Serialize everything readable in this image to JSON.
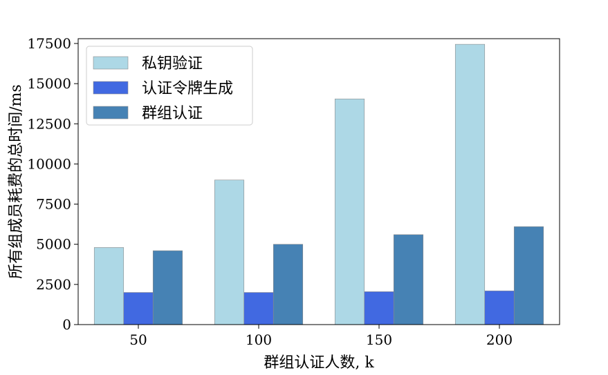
{
  "chart_data": {
    "type": "bar",
    "title": "",
    "xlabel": "群组认证人数, k",
    "ylabel": "所有组成员耗费的总时间/ms",
    "categories": [
      "50",
      "100",
      "150",
      "200"
    ],
    "series": [
      {
        "name": "私钥验证",
        "values": [
          4800,
          9000,
          14050,
          17450
        ],
        "color": "#add8e6"
      },
      {
        "name": "认证令牌生成",
        "values": [
          2000,
          2000,
          2050,
          2100
        ],
        "color": "#4169e1"
      },
      {
        "name": "群组认证",
        "values": [
          4600,
          5000,
          5600,
          6100
        ],
        "color": "#4682b4"
      }
    ],
    "ylim": [
      0,
      17800
    ],
    "yticks": [
      0,
      2500,
      5000,
      7500,
      10000,
      12500,
      15000,
      17500
    ],
    "grid": false,
    "legend": "top-left"
  }
}
